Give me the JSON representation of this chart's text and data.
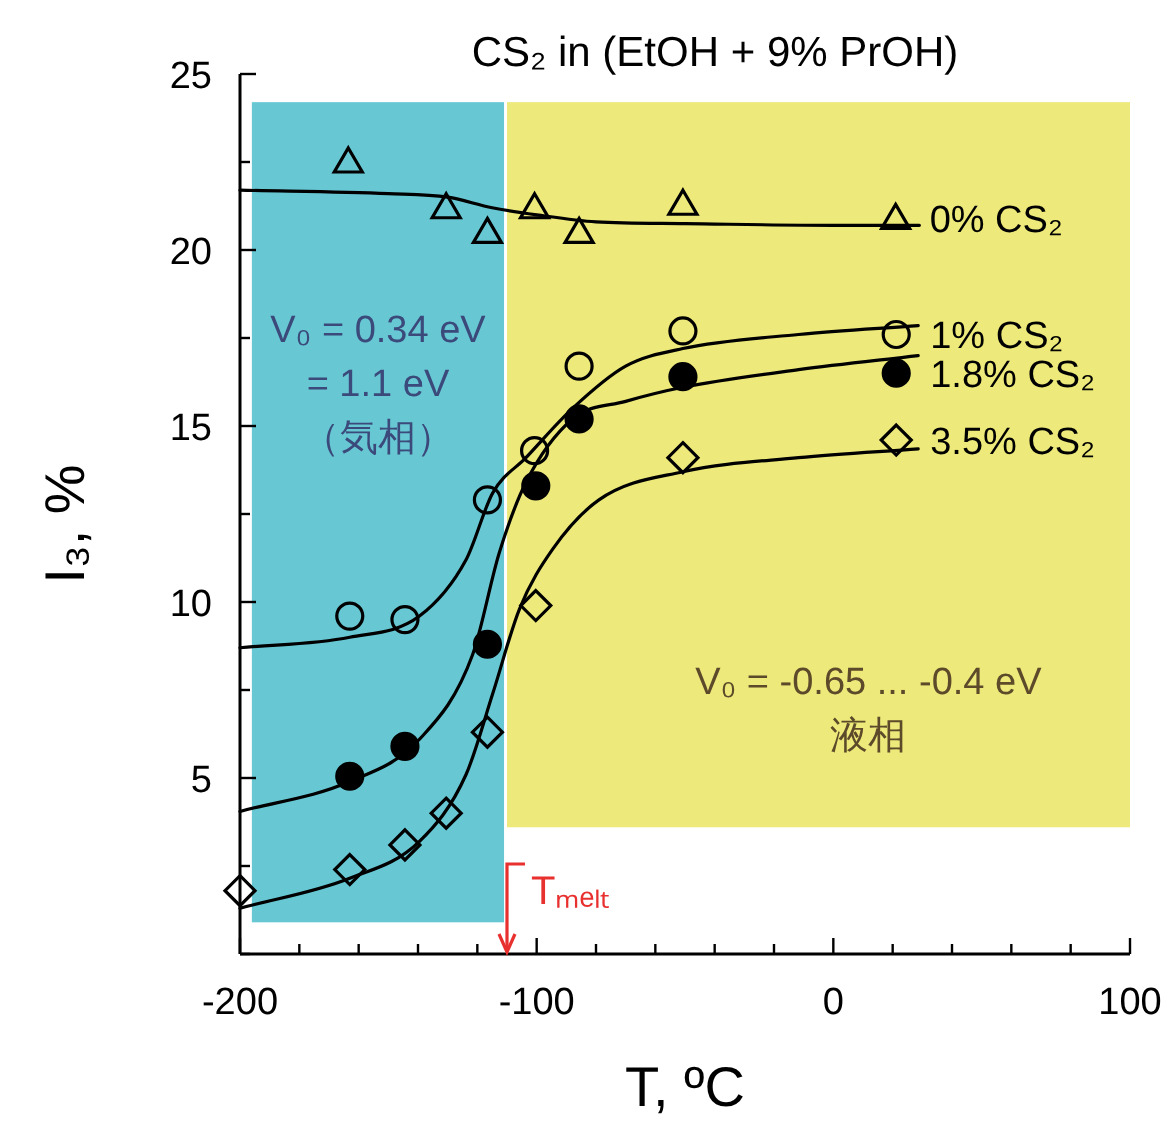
{
  "chart_data": {
    "type": "scatter",
    "title": "CS₂ in (EtOH + 9% PrOH)",
    "xlabel": "T, ºC",
    "ylabel": "I₃, %",
    "xlim": [
      -200,
      100
    ],
    "ylim": [
      0,
      25
    ],
    "xticks": [
      -200,
      {
        "value": -180,
        "label": null
      },
      {
        "value": -160,
        "label": null
      },
      {
        "value": -140,
        "label": null
      },
      {
        "value": -120,
        "label": null
      },
      -100,
      {
        "value": -80,
        "label": null
      },
      {
        "value": -60,
        "label": null
      },
      {
        "value": -40,
        "label": null
      },
      {
        "value": -20,
        "label": null
      },
      0,
      {
        "value": 20,
        "label": null
      },
      {
        "value": 40,
        "label": null
      },
      {
        "value": 60,
        "label": null
      },
      {
        "value": 80,
        "label": null
      },
      100
    ],
    "yticks": [
      {
        "value": 0,
        "label": null
      },
      {
        "value": 2.5,
        "label": null
      },
      5,
      {
        "value": 7.5,
        "label": null
      },
      10,
      {
        "value": 12.5,
        "label": null
      },
      15,
      {
        "value": 17.5,
        "label": null
      },
      20,
      {
        "value": 22.5,
        "label": null
      },
      25
    ],
    "bands": [
      {
        "axis": "x",
        "from": -196,
        "to": -111,
        "color": "#67c8d4",
        "label": "V₀ = 0.34 eV\n= 1.1 eV\n（気相）"
      },
      {
        "axis": "x",
        "from": -110,
        "to": 100,
        "color": "#ede97a",
        "label": "V₀ = -0.65 ... -0.4 eV\n液相"
      }
    ],
    "ref_lines": [
      {
        "axis": "x",
        "value": -110,
        "label": "Tₘₑₗₜ",
        "color": "#e8312f"
      }
    ],
    "series": [
      {
        "type": "line",
        "color": "#000000",
        "x": [
          -200,
          -150,
          -130,
          -115,
          -100,
          -80,
          -50,
          0,
          29
        ],
        "values": [
          21.7,
          21.6,
          21.5,
          21.2,
          21.0,
          20.8,
          20.75,
          20.7,
          20.7
        ]
      },
      {
        "type": "line",
        "color": "#000000",
        "x": [
          -200,
          -163,
          -139.5,
          -123.8,
          -114.8,
          -103.6,
          -87.9,
          -70,
          -50.7,
          -11.7,
          28.6
        ],
        "values": [
          8.7,
          9.0,
          9.6,
          11.2,
          13.1,
          14.1,
          15.5,
          16.7,
          17.2,
          17.6,
          17.85
        ]
      },
      {
        "type": "line",
        "color": "#000000",
        "x": [
          -200,
          -163,
          -139.5,
          -121.6,
          -112.6,
          -103.6,
          -87.9,
          -70,
          -50.7,
          -11.7,
          28.6
        ],
        "values": [
          4.05,
          4.9,
          6.1,
          8.5,
          11.4,
          13.4,
          15.2,
          15.7,
          16.1,
          16.6,
          17.0
        ]
      },
      {
        "type": "line",
        "color": "#000000",
        "x": [
          -200,
          -163,
          -139.5,
          -123.8,
          -114.8,
          -105.8,
          -94.6,
          -79,
          -50.7,
          -11.7,
          28.6
        ],
        "values": [
          1.3,
          2.15,
          3.2,
          5.1,
          7.4,
          9.8,
          11.5,
          12.9,
          13.7,
          14.1,
          14.35
        ]
      },
      {
        "name": "0% CS₂",
        "marker": "triangle",
        "x": [
          -163.5,
          -130.5,
          -116.6,
          -100.7,
          -85.7,
          -50.7,
          21
        ],
        "values": [
          22.5,
          21.2,
          20.5,
          21.2,
          20.5,
          21.3,
          20.9
        ]
      },
      {
        "name": "1% CS₂",
        "marker": "circle",
        "x": [
          -163,
          -144.4,
          -116.6,
          -100.7,
          -85.7,
          -50.7,
          21.2
        ],
        "values": [
          9.6,
          9.5,
          12.9,
          14.3,
          16.7,
          17.7,
          17.6
        ]
      },
      {
        "name": "1.8% CS₂",
        "marker": "circle",
        "color": "#000000",
        "x": [
          -163,
          -144.4,
          -116.6,
          -100.3,
          -85.7,
          -50.7,
          21.2
        ],
        "values": [
          5.05,
          5.9,
          8.8,
          13.3,
          15.2,
          16.4,
          16.5
        ]
      },
      {
        "name": "3.5% CS₂",
        "marker": "diamond",
        "x": [
          -200,
          -163,
          -144.4,
          -130.5,
          -116.6,
          -100.3,
          -50.7,
          21.2
        ],
        "values": [
          1.8,
          2.4,
          3.1,
          4.0,
          6.3,
          9.9,
          14.1,
          14.6
        ]
      }
    ]
  }
}
